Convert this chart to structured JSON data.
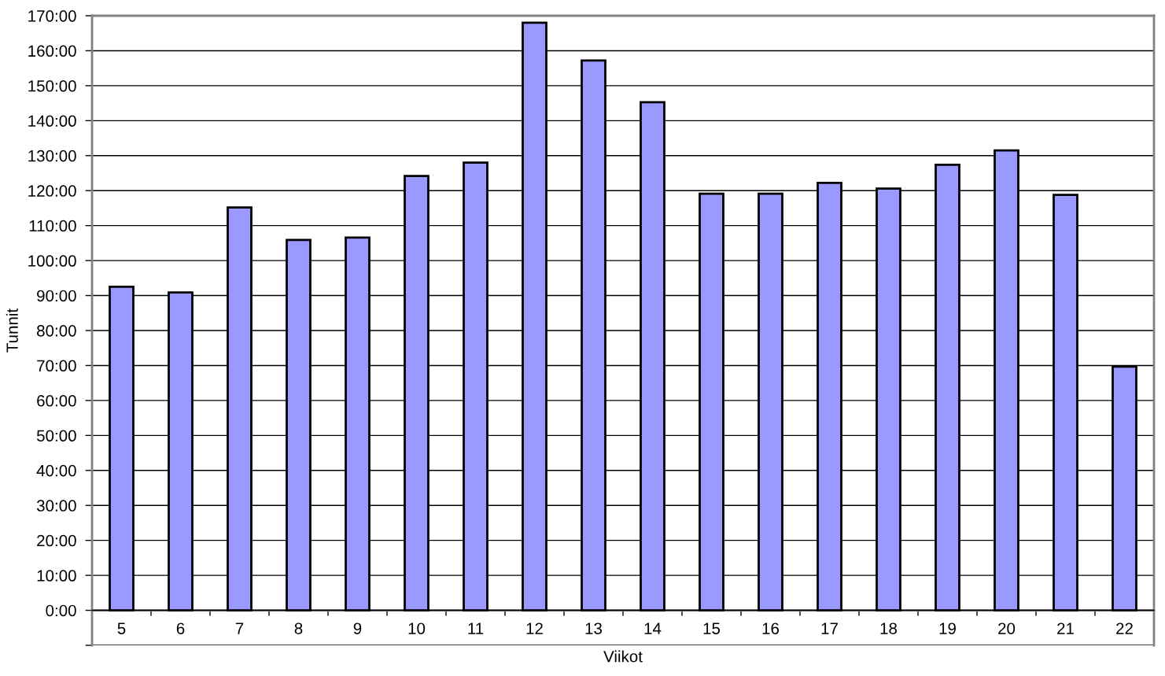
{
  "chart_data": {
    "type": "bar",
    "xlabel": "Viikot",
    "ylabel": "Tunnit",
    "categories": [
      "5",
      "6",
      "7",
      "8",
      "9",
      "10",
      "11",
      "12",
      "13",
      "14",
      "15",
      "16",
      "17",
      "18",
      "19",
      "20",
      "21",
      "22"
    ],
    "values": [
      92.5,
      90.9,
      115.2,
      105.9,
      106.6,
      124.2,
      128.0,
      168.0,
      157.2,
      145.3,
      119.1,
      119.1,
      122.2,
      120.6,
      127.4,
      131.5,
      118.8,
      69.7
    ],
    "color": "#9999ff",
    "ylim": [
      -10,
      170
    ],
    "yticks": [
      {
        "value": -10,
        "label": null
      },
      {
        "value": 0,
        "label": "0:00"
      },
      {
        "value": 10,
        "label": "10:00"
      },
      {
        "value": 20,
        "label": "20:00"
      },
      {
        "value": 30,
        "label": "30:00"
      },
      {
        "value": 40,
        "label": "40:00"
      },
      {
        "value": 50,
        "label": "50:00"
      },
      {
        "value": 60,
        "label": "60:00"
      },
      {
        "value": 70,
        "label": "70:00"
      },
      {
        "value": 80,
        "label": "80:00"
      },
      {
        "value": 90,
        "label": "90:00"
      },
      {
        "value": 100,
        "label": "100:00"
      },
      {
        "value": 110,
        "label": "110:00"
      },
      {
        "value": 120,
        "label": "120:00"
      },
      {
        "value": 130,
        "label": "130:00"
      },
      {
        "value": 140,
        "label": "140:00"
      },
      {
        "value": 150,
        "label": "150:00"
      },
      {
        "value": 160,
        "label": "160:00"
      },
      {
        "value": 170,
        "label": "170:00"
      }
    ],
    "grid": "y"
  }
}
